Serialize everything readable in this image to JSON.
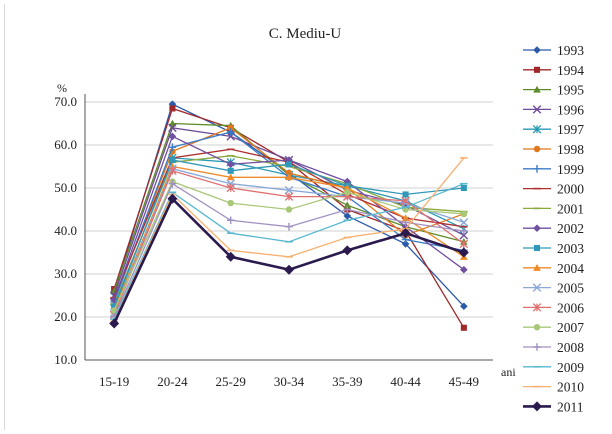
{
  "chart_data": {
    "type": "line",
    "title": "C. Mediu-U",
    "ylabel": "%",
    "xlabel": "ani",
    "categories": [
      "15-19",
      "20-24",
      "25-29",
      "30-34",
      "35-39",
      "40-44",
      "45-49"
    ],
    "ylim": [
      10,
      70
    ],
    "yticks": [
      "10.0",
      "20.0",
      "30.0",
      "40.0",
      "50.0",
      "60.0",
      "70.0"
    ],
    "grid": true,
    "legend_position": "right",
    "series": [
      {
        "name": "1993",
        "color": "#2a5aa8",
        "marker": "diamond",
        "values": [
          25.5,
          69.5,
          63.0,
          53.5,
          43.5,
          37.0,
          22.5
        ]
      },
      {
        "name": "1994",
        "color": "#a0282a",
        "marker": "square",
        "values": [
          26.5,
          68.5,
          64.0,
          56.0,
          45.0,
          40.0,
          17.5
        ]
      },
      {
        "name": "1995",
        "color": "#5e8c2a",
        "marker": "triangle",
        "values": [
          26.0,
          65.0,
          64.5,
          53.0,
          46.0,
          41.0,
          37.5
        ]
      },
      {
        "name": "1996",
        "color": "#6e4b98",
        "marker": "x",
        "values": [
          25.0,
          64.0,
          62.0,
          56.5,
          49.5,
          46.0,
          39.0
        ]
      },
      {
        "name": "1997",
        "color": "#2b9ab4",
        "marker": "star",
        "values": [
          22.0,
          57.0,
          56.0,
          53.0,
          50.5,
          47.0,
          40.5
        ]
      },
      {
        "name": "1998",
        "color": "#e0781e",
        "marker": "circle",
        "values": [
          24.0,
          58.5,
          64.0,
          53.5,
          50.0,
          39.0,
          44.0
        ]
      },
      {
        "name": "1999",
        "color": "#3b7cc4",
        "marker": "plus",
        "values": [
          23.5,
          59.5,
          63.0,
          52.5,
          48.0,
          38.0,
          35.5
        ]
      },
      {
        "name": "2000",
        "color": "#b03030",
        "marker": "dash",
        "values": [
          24.5,
          57.0,
          59.0,
          56.0,
          48.5,
          43.0,
          41.0
        ]
      },
      {
        "name": "2001",
        "color": "#8aaa3a",
        "marker": "dash",
        "values": [
          23.0,
          56.0,
          57.5,
          55.0,
          51.0,
          45.5,
          44.5
        ]
      },
      {
        "name": "2002",
        "color": "#7050a0",
        "marker": "diamond",
        "values": [
          24.0,
          62.0,
          55.5,
          56.5,
          51.5,
          41.0,
          31.0
        ]
      },
      {
        "name": "2003",
        "color": "#3098b8",
        "marker": "square",
        "values": [
          22.5,
          56.5,
          54.0,
          55.5,
          50.5,
          48.5,
          50.0
        ]
      },
      {
        "name": "2004",
        "color": "#f08a28",
        "marker": "triangle",
        "values": [
          21.5,
          55.0,
          52.5,
          52.5,
          50.0,
          43.0,
          34.0
        ]
      },
      {
        "name": "2005",
        "color": "#8aa8d8",
        "marker": "x",
        "values": [
          21.0,
          54.5,
          51.0,
          49.5,
          48.0,
          46.5,
          42.0
        ]
      },
      {
        "name": "2006",
        "color": "#e07070",
        "marker": "star",
        "values": [
          20.5,
          54.0,
          50.0,
          48.0,
          48.0,
          47.0,
          37.0
        ]
      },
      {
        "name": "2007",
        "color": "#a8c878",
        "marker": "circle",
        "values": [
          21.5,
          51.5,
          46.5,
          45.0,
          49.0,
          45.0,
          44.0
        ]
      },
      {
        "name": "2008",
        "color": "#a090c0",
        "marker": "plus",
        "values": [
          20.0,
          51.0,
          42.5,
          41.0,
          45.0,
          42.0,
          40.0
        ]
      },
      {
        "name": "2009",
        "color": "#58b8d0",
        "marker": "dash",
        "values": [
          19.5,
          49.0,
          39.5,
          37.5,
          42.5,
          45.5,
          51.0
        ]
      },
      {
        "name": "2010",
        "color": "#f8b070",
        "marker": "dash",
        "values": [
          19.0,
          48.5,
          35.5,
          34.0,
          38.5,
          40.5,
          57.0
        ]
      },
      {
        "name": "2011",
        "color": "#2b1a4e",
        "marker": "diamond",
        "bold": true,
        "values": [
          18.5,
          47.5,
          34.0,
          31.0,
          35.5,
          39.5,
          35.0
        ]
      }
    ]
  }
}
